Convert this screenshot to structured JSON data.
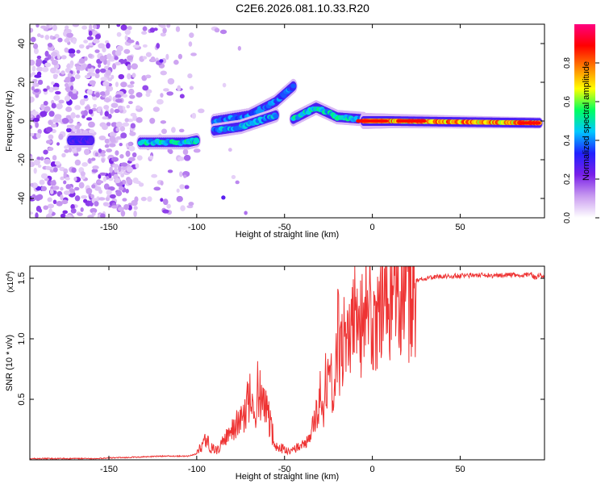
{
  "title": "C2E6.2026.081.10.33.R20",
  "chart_data": [
    {
      "type": "heatmap",
      "xlabel": "Height of straight line (km)",
      "ylabel": "Frequency (Hz)",
      "xlim": [
        -195,
        98
      ],
      "ylim": [
        -50,
        50
      ],
      "xticks": [
        -150,
        -100,
        -50,
        0,
        50
      ],
      "yticks": [
        -40,
        -20,
        0,
        20,
        40
      ],
      "colorbar": {
        "label": "Normalized spectral amplitude",
        "range": [
          0,
          1
        ],
        "ticks": [
          "0.0",
          "0.2",
          "0.4",
          "0.6",
          "0.8"
        ]
      },
      "colors": [
        "#ffffff",
        "#c99cf0",
        "#7a1fe8",
        "#2020ff",
        "#00c8ff",
        "#00ff60",
        "#ffff00",
        "#ff8000",
        "#ff0000",
        "#ff0080"
      ],
      "features": [
        {
          "name": "noise-cloud",
          "x_range": [
            -195,
            -100
          ],
          "y_range": [
            -50,
            50
          ],
          "amplitude": 0.15
        },
        {
          "name": "branch-1",
          "points": [
            [
              -172,
              -10
            ],
            [
              -160,
              -10
            ]
          ],
          "amplitude": 0.3
        },
        {
          "name": "branch-2",
          "points": [
            [
              -132,
              -11
            ],
            [
              -105,
              -11
            ],
            [
              -100,
              -10
            ]
          ],
          "amplitude": 0.5
        },
        {
          "name": "branch-3",
          "points": [
            [
              -90,
              0
            ],
            [
              -70,
              3
            ],
            [
              -55,
              10
            ],
            [
              -45,
              18
            ]
          ],
          "amplitude": 0.4
        },
        {
          "name": "branch-4",
          "points": [
            [
              -90,
              -5
            ],
            [
              -75,
              -3
            ],
            [
              -65,
              0
            ],
            [
              -55,
              3
            ]
          ],
          "amplitude": 0.45
        },
        {
          "name": "branch-5",
          "points": [
            [
              -45,
              1
            ],
            [
              -32,
              7
            ],
            [
              -20,
              2
            ],
            [
              -5,
              1
            ]
          ],
          "amplitude": 0.5
        },
        {
          "name": "main-line",
          "points": [
            [
              -5,
              0
            ],
            [
              10,
              0
            ],
            [
              50,
              -0.5
            ],
            [
              95,
              -1
            ]
          ],
          "amplitude": 0.8
        }
      ]
    },
    {
      "type": "line",
      "xlabel": "Height of straight line (km)",
      "ylabel": "SNR (10 * v/v)",
      "scale_label": "(x10",
      "scale_exp": "4",
      "scale_close": ")",
      "xlim": [
        -195,
        98
      ],
      "ylim": [
        0,
        1.6
      ],
      "xticks": [
        -150,
        -100,
        -50,
        0,
        50
      ],
      "yticks": [
        "0.5",
        "1.0",
        "1.5"
      ],
      "line_color": "#ee3333",
      "series": [
        {
          "name": "SNR",
          "x": [
            -195,
            -180,
            -160,
            -140,
            -120,
            -105,
            -100,
            -97,
            -95,
            -92,
            -88,
            -85,
            -82,
            -78,
            -75,
            -72,
            -70,
            -67,
            -65,
            -62,
            -60,
            -57,
            -55,
            -52,
            -50,
            -47,
            -45,
            -42,
            -40,
            -37,
            -35,
            -32,
            -30,
            -28,
            -25,
            -22,
            -20,
            -17,
            -15,
            -12,
            -10,
            -7,
            -5,
            -2,
            0,
            3,
            5,
            8,
            10,
            13,
            15,
            18,
            20,
            23,
            25,
            28,
            30,
            35,
            40,
            50,
            60,
            70,
            80,
            85,
            90,
            93,
            95,
            98
          ],
          "y": [
            0.01,
            0.01,
            0.01,
            0.02,
            0.03,
            0.03,
            0.05,
            0.12,
            0.18,
            0.1,
            0.08,
            0.15,
            0.2,
            0.28,
            0.32,
            0.4,
            0.55,
            0.35,
            0.6,
            0.45,
            0.4,
            0.22,
            0.12,
            0.1,
            0.08,
            0.06,
            0.08,
            0.1,
            0.12,
            0.15,
            0.2,
            0.35,
            0.55,
            0.45,
            0.8,
            0.65,
            1.0,
            0.85,
            1.1,
            0.95,
            1.15,
            1.05,
            1.25,
            1.1,
            1.35,
            1.15,
            1.3,
            1.25,
            1.35,
            1.3,
            1.38,
            1.4,
            1.42,
            1.45,
            1.48,
            1.5,
            1.5,
            1.51,
            1.52,
            1.52,
            1.53,
            1.52,
            1.53,
            1.52,
            1.54,
            1.5,
            1.53,
            1.52
          ]
        }
      ]
    }
  ]
}
